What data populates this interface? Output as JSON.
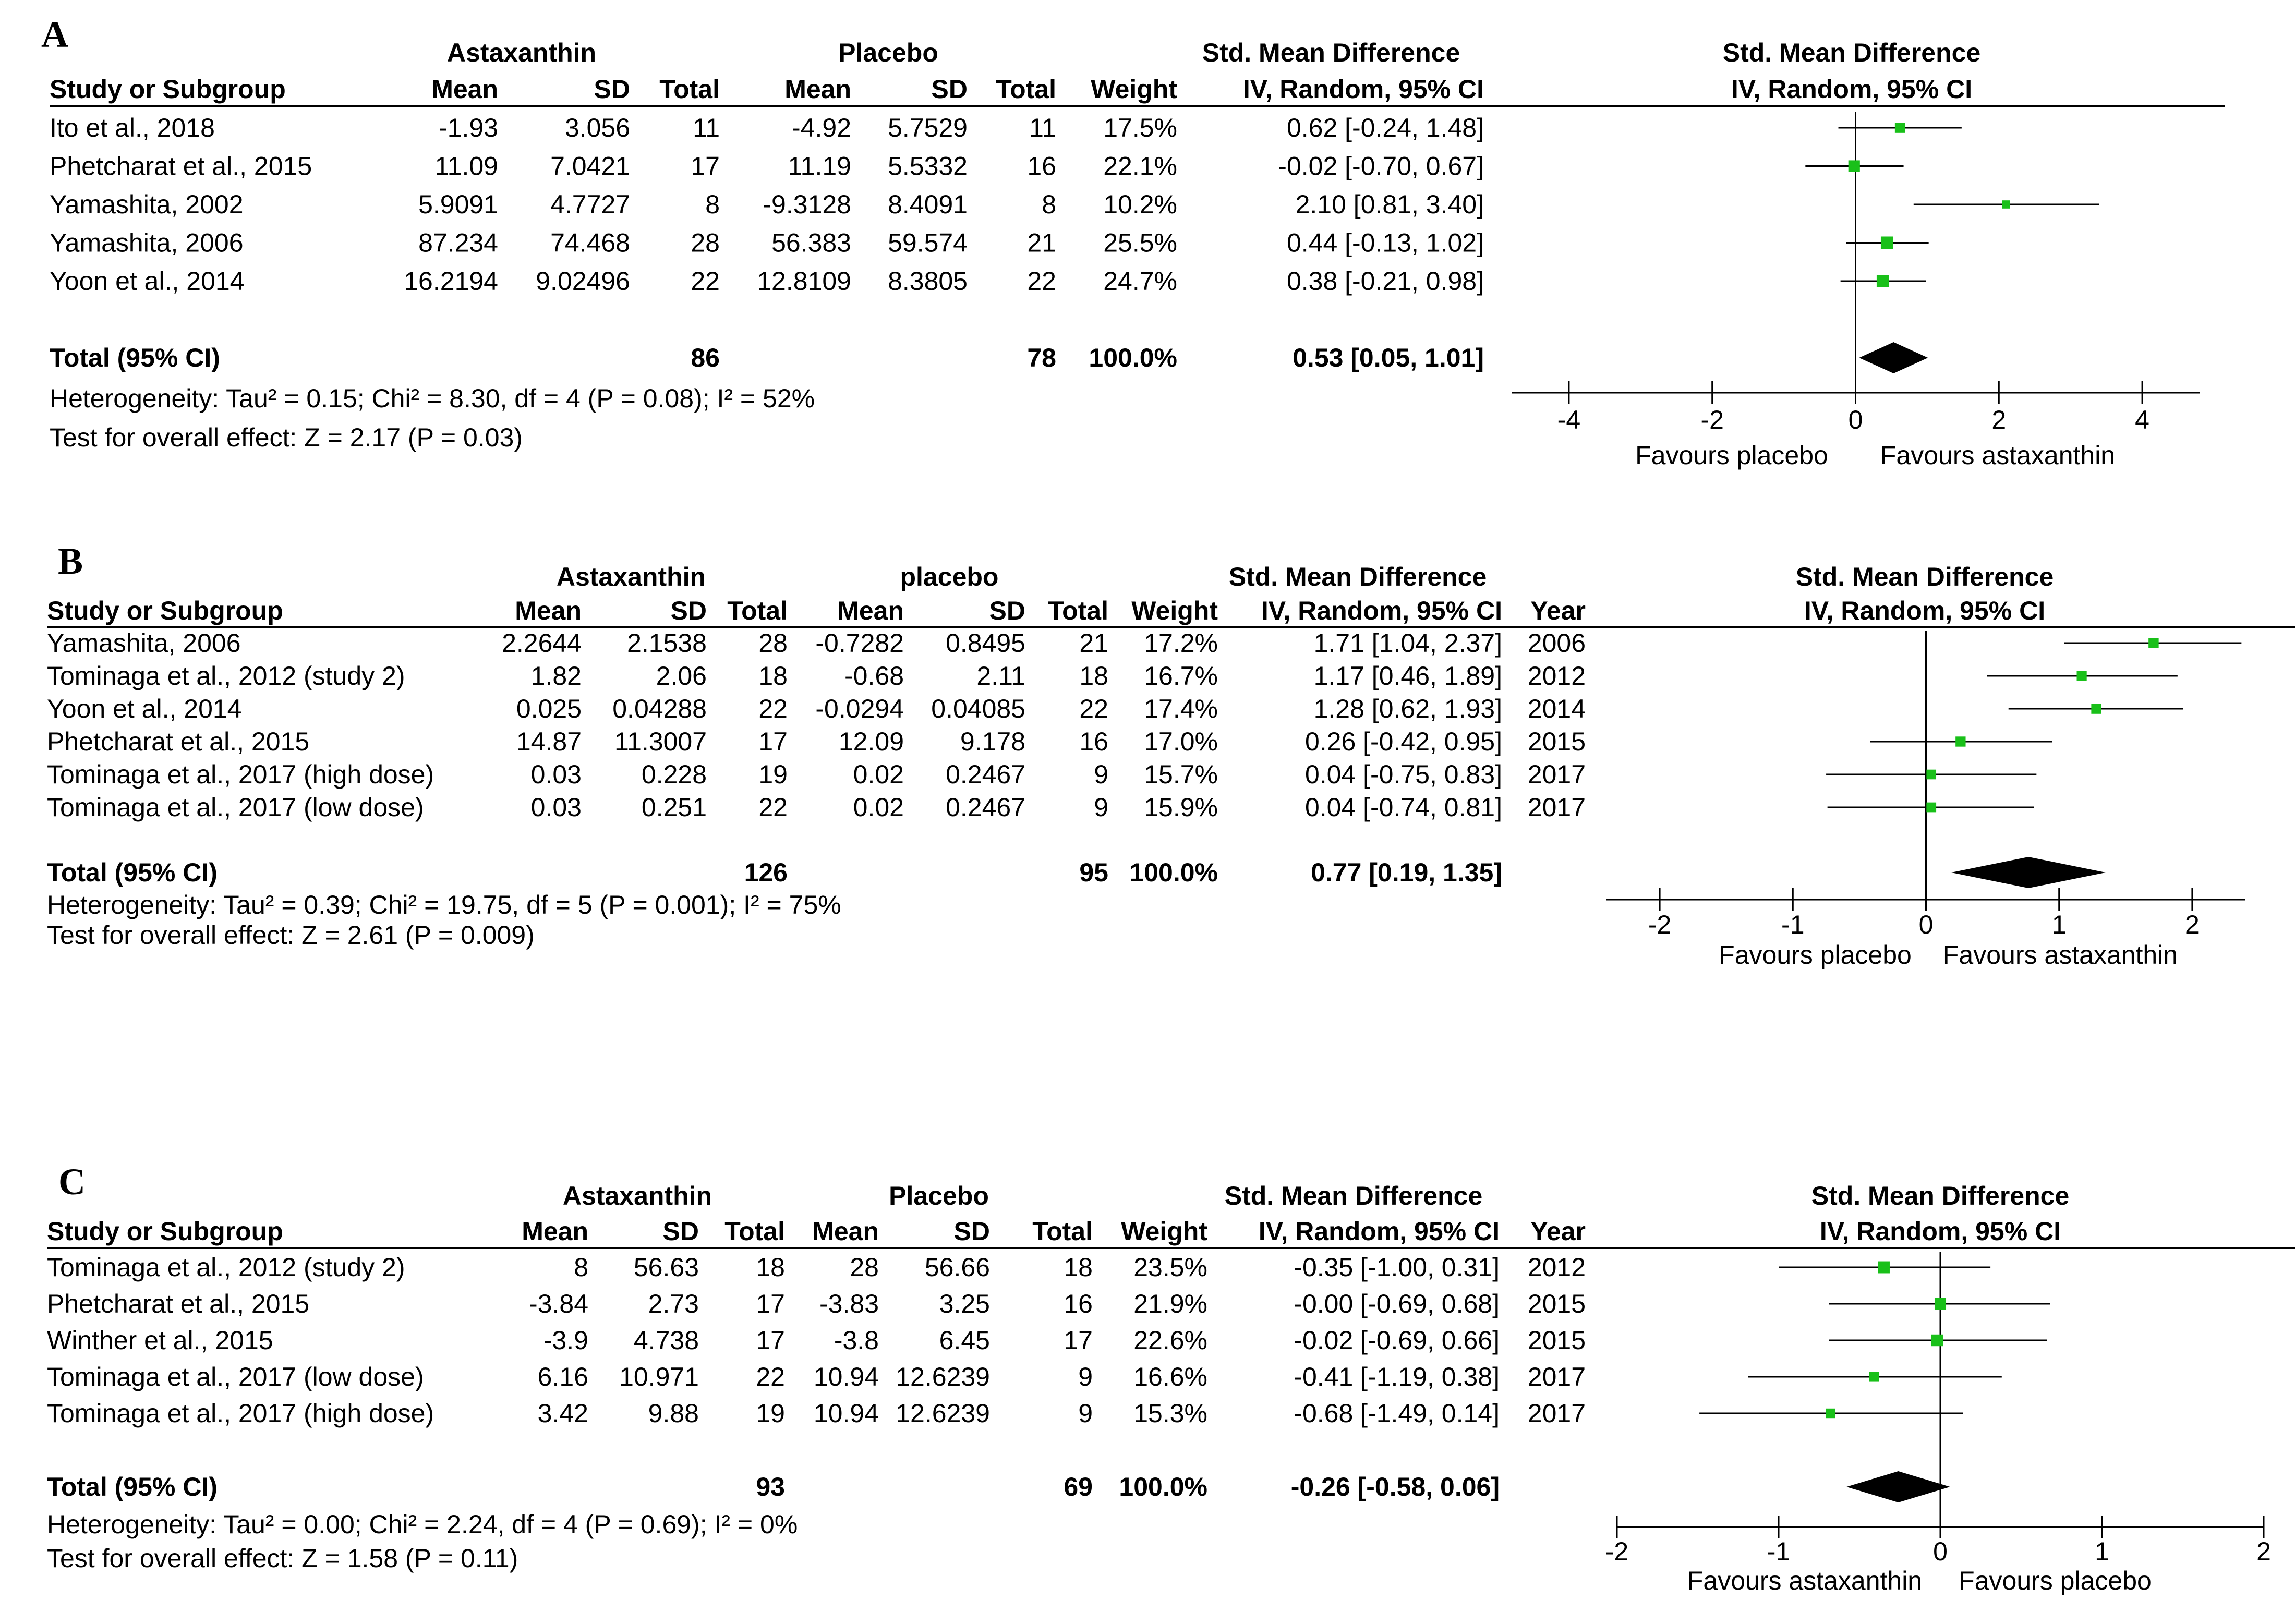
{
  "chart_data": [
    {
      "type": "forest",
      "panel_label": "A",
      "group1_name": "Astaxanthin",
      "group2_name": "Placebo",
      "columns": {
        "study": "Study or Subgroup",
        "mean": "Mean",
        "sd": "SD",
        "total": "Total",
        "weight": "Weight",
        "ci_header_1": "Std. Mean Difference",
        "ci_header_2": "IV, Random, 95% CI",
        "year": ""
      },
      "plot_header_1": "Std. Mean Difference",
      "plot_header_2": "IV, Random, 95% CI",
      "studies": [
        {
          "name": "Ito et al., 2018",
          "m1": "-1.93",
          "sd1": "3.056",
          "n1": "11",
          "m2": "-4.92",
          "sd2": "5.7529",
          "n2": "11",
          "weight": "17.5%",
          "ci_text": "0.62 [-0.24, 1.48]",
          "year": "",
          "est": 0.62,
          "lo": -0.24,
          "hi": 1.48,
          "w": 17.5
        },
        {
          "name": "Phetcharat et al., 2015",
          "m1": "11.09",
          "sd1": "7.0421",
          "n1": "17",
          "m2": "11.19",
          "sd2": "5.5332",
          "n2": "16",
          "weight": "22.1%",
          "ci_text": "-0.02 [-0.70, 0.67]",
          "year": "",
          "est": -0.02,
          "lo": -0.7,
          "hi": 0.67,
          "w": 22.1
        },
        {
          "name": "Yamashita, 2002",
          "m1": "5.9091",
          "sd1": "4.7727",
          "n1": "8",
          "m2": "-9.3128",
          "sd2": "8.4091",
          "n2": "8",
          "weight": "10.2%",
          "ci_text": "2.10 [0.81, 3.40]",
          "year": "",
          "est": 2.1,
          "lo": 0.81,
          "hi": 3.4,
          "w": 10.2
        },
        {
          "name": "Yamashita, 2006",
          "m1": "87.234",
          "sd1": "74.468",
          "n1": "28",
          "m2": "56.383",
          "sd2": "59.574",
          "n2": "21",
          "weight": "25.5%",
          "ci_text": "0.44 [-0.13, 1.02]",
          "year": "",
          "est": 0.44,
          "lo": -0.13,
          "hi": 1.02,
          "w": 25.5
        },
        {
          "name": "Yoon et al., 2014",
          "m1": "16.2194",
          "sd1": "9.02496",
          "n1": "22",
          "m2": "12.8109",
          "sd2": "8.3805",
          "n2": "22",
          "weight": "24.7%",
          "ci_text": "0.38 [-0.21, 0.98]",
          "year": "",
          "est": 0.38,
          "lo": -0.21,
          "hi": 0.98,
          "w": 24.7
        }
      ],
      "total": {
        "label": "Total (95% CI)",
        "n1": "86",
        "n2": "78",
        "weight": "100.0%",
        "ci_text": "0.53 [0.05, 1.01]",
        "est": 0.53,
        "lo": 0.05,
        "hi": 1.01
      },
      "heterogeneity": "Heterogeneity: Tau² = 0.15; Chi² = 8.30, df = 4 (P = 0.08); I² = 52%",
      "overall_effect": "Test for overall effect: Z = 2.17 (P = 0.03)",
      "xlim": [
        -4.8,
        4.8
      ],
      "ticks": [
        -4,
        -2,
        0,
        2,
        4
      ],
      "tick_labels": [
        "-4",
        "-2",
        "0",
        "2",
        "4"
      ],
      "favours_left": "Favours placebo",
      "favours_right": "Favours astaxanthin"
    },
    {
      "type": "forest",
      "panel_label": "B",
      "group1_name": "Astaxanthin",
      "group2_name": "placebo",
      "columns": {
        "study": "Study or Subgroup",
        "mean": "Mean",
        "sd": "SD",
        "total": "Total",
        "weight": "Weight",
        "ci_header_1": "Std. Mean Difference",
        "ci_header_2": "IV, Random, 95% CI",
        "year": "Year"
      },
      "plot_header_1": "Std. Mean Difference",
      "plot_header_2": "IV, Random, 95% CI",
      "studies": [
        {
          "name": "Yamashita, 2006",
          "m1": "2.2644",
          "sd1": "2.1538",
          "n1": "28",
          "m2": "-0.7282",
          "sd2": "0.8495",
          "n2": "21",
          "weight": "17.2%",
          "ci_text": "1.71 [1.04, 2.37]",
          "year": "2006",
          "est": 1.71,
          "lo": 1.04,
          "hi": 2.37,
          "w": 17.2
        },
        {
          "name": "Tominaga et al., 2012 (study 2)",
          "m1": "1.82",
          "sd1": "2.06",
          "n1": "18",
          "m2": "-0.68",
          "sd2": "2.11",
          "n2": "18",
          "weight": "16.7%",
          "ci_text": "1.17 [0.46, 1.89]",
          "year": "2012",
          "est": 1.17,
          "lo": 0.46,
          "hi": 1.89,
          "w": 16.7
        },
        {
          "name": "Yoon et al., 2014",
          "m1": "0.025",
          "sd1": "0.04288",
          "n1": "22",
          "m2": "-0.0294",
          "sd2": "0.04085",
          "n2": "22",
          "weight": "17.4%",
          "ci_text": "1.28 [0.62, 1.93]",
          "year": "2014",
          "est": 1.28,
          "lo": 0.62,
          "hi": 1.93,
          "w": 17.4
        },
        {
          "name": "Phetcharat et al., 2015",
          "m1": "14.87",
          "sd1": "11.3007",
          "n1": "17",
          "m2": "12.09",
          "sd2": "9.178",
          "n2": "16",
          "weight": "17.0%",
          "ci_text": "0.26 [-0.42, 0.95]",
          "year": "2015",
          "est": 0.26,
          "lo": -0.42,
          "hi": 0.95,
          "w": 17.0
        },
        {
          "name": "Tominaga et al., 2017 (high dose)",
          "m1": "0.03",
          "sd1": "0.228",
          "n1": "19",
          "m2": "0.02",
          "sd2": "0.2467",
          "n2": "9",
          "weight": "15.7%",
          "ci_text": "0.04 [-0.75, 0.83]",
          "year": "2017",
          "est": 0.04,
          "lo": -0.75,
          "hi": 0.83,
          "w": 15.7
        },
        {
          "name": "Tominaga et al., 2017 (low dose)",
          "m1": "0.03",
          "sd1": "0.251",
          "n1": "22",
          "m2": "0.02",
          "sd2": "0.2467",
          "n2": "9",
          "weight": "15.9%",
          "ci_text": "0.04 [-0.74, 0.81]",
          "year": "2017",
          "est": 0.04,
          "lo": -0.74,
          "hi": 0.81,
          "w": 15.9
        }
      ],
      "total": {
        "label": "Total (95% CI)",
        "n1": "126",
        "n2": "95",
        "weight": "100.0%",
        "ci_text": "0.77 [0.19, 1.35]",
        "est": 0.77,
        "lo": 0.19,
        "hi": 1.35
      },
      "heterogeneity": "Heterogeneity: Tau² = 0.39; Chi² = 19.75, df = 5 (P = 0.001); I² = 75%",
      "overall_effect": "Test for overall effect: Z = 2.61 (P = 0.009)",
      "xlim": [
        -2.4,
        2.4
      ],
      "ticks": [
        -2,
        -1,
        0,
        1,
        2
      ],
      "tick_labels": [
        "-2",
        "-1",
        "0",
        "1",
        "2"
      ],
      "favours_left": "Favours placebo",
      "favours_right": "Favours astaxanthin"
    },
    {
      "type": "forest",
      "panel_label": "C",
      "group1_name": "Astaxanthin",
      "group2_name": "Placebo",
      "columns": {
        "study": "Study or Subgroup",
        "mean": "Mean",
        "sd": "SD",
        "total": "Total",
        "weight": "Weight",
        "ci_header_1": "Std. Mean Difference",
        "ci_header_2": "IV, Random, 95% CI",
        "year": "Year"
      },
      "plot_header_1": "Std. Mean Difference",
      "plot_header_2": "IV, Random, 95% CI",
      "studies": [
        {
          "name": "Tominaga et al., 2012 (study 2)",
          "m1": "8",
          "sd1": "56.63",
          "n1": "18",
          "m2": "28",
          "sd2": "56.66",
          "n2": "18",
          "weight": "23.5%",
          "ci_text": "-0.35 [-1.00, 0.31]",
          "year": "2012",
          "est": -0.35,
          "lo": -1.0,
          "hi": 0.31,
          "w": 23.5
        },
        {
          "name": "Phetcharat et al., 2015",
          "m1": "-3.84",
          "sd1": "2.73",
          "n1": "17",
          "m2": "-3.83",
          "sd2": "3.25",
          "n2": "16",
          "weight": "21.9%",
          "ci_text": "-0.00 [-0.69, 0.68]",
          "year": "2015",
          "est": 0.0,
          "lo": -0.69,
          "hi": 0.68,
          "w": 21.9
        },
        {
          "name": "Winther et al., 2015",
          "m1": "-3.9",
          "sd1": "4.738",
          "n1": "17",
          "m2": "-3.8",
          "sd2": "6.45",
          "n2": "17",
          "weight": "22.6%",
          "ci_text": "-0.02 [-0.69, 0.66]",
          "year": "2015",
          "est": -0.02,
          "lo": -0.69,
          "hi": 0.66,
          "w": 22.6
        },
        {
          "name": "Tominaga et al., 2017 (low dose)",
          "m1": "6.16",
          "sd1": "10.971",
          "n1": "22",
          "m2": "10.94",
          "sd2": "12.6239",
          "n2": "9",
          "weight": "16.6%",
          "ci_text": "-0.41 [-1.19, 0.38]",
          "year": "2017",
          "est": -0.41,
          "lo": -1.19,
          "hi": 0.38,
          "w": 16.6
        },
        {
          "name": "Tominaga et al., 2017 (high dose)",
          "m1": "3.42",
          "sd1": "9.88",
          "n1": "19",
          "m2": "10.94",
          "sd2": "12.6239",
          "n2": "9",
          "weight": "15.3%",
          "ci_text": "-0.68 [-1.49, 0.14]",
          "year": "2017",
          "est": -0.68,
          "lo": -1.49,
          "hi": 0.14,
          "w": 15.3
        }
      ],
      "total": {
        "label": "Total (95% CI)",
        "n1": "93",
        "n2": "69",
        "weight": "100.0%",
        "ci_text": "-0.26 [-0.58, 0.06]",
        "est": -0.26,
        "lo": -0.58,
        "hi": 0.06
      },
      "heterogeneity": "Heterogeneity: Tau² = 0.00; Chi² = 2.24, df = 4 (P = 0.69); I² = 0%",
      "overall_effect": "Test for overall effect: Z = 1.58 (P = 0.11)",
      "xlim": [
        -2,
        2
      ],
      "ticks": [
        -2,
        -1,
        0,
        1,
        2
      ],
      "tick_labels": [
        "-2",
        "-1",
        "0",
        "1",
        "2"
      ],
      "favours_left": "Favours astaxanthin",
      "favours_right": "Favours placebo"
    }
  ],
  "colors": {
    "marker": "#19c019",
    "text": "#000000"
  }
}
